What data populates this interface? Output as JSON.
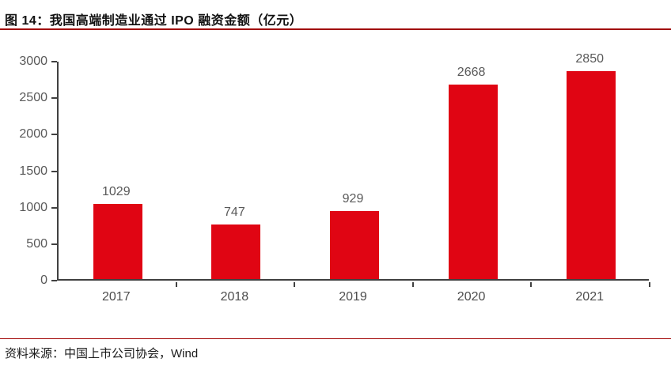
{
  "header": {
    "title": "图 14：我国高端制造业通过 IPO 融资金额（亿元）"
  },
  "footer": {
    "source": "资料来源：中国上市公司协会，Wind"
  },
  "colors": {
    "bar": "#e00513",
    "rule": "#a00000",
    "axis": "#404040",
    "value_label": "#595959",
    "axis_label": "#595959"
  },
  "chart_data": {
    "type": "bar",
    "title": "图 14：我国高端制造业通过 IPO 融资金额（亿元）",
    "categories": [
      "2017",
      "2018",
      "2019",
      "2020",
      "2021"
    ],
    "values": [
      1029,
      747,
      929,
      2668,
      2850
    ],
    "xlabel": "",
    "ylabel": "",
    "ylim": [
      0,
      3000
    ],
    "yticks": [
      0,
      500,
      1000,
      1500,
      2000,
      2500,
      3000
    ],
    "grid": false,
    "legend": false,
    "data_labels": true,
    "bar_color": "#e00513",
    "source": "资料来源：中国上市公司协会，Wind"
  }
}
